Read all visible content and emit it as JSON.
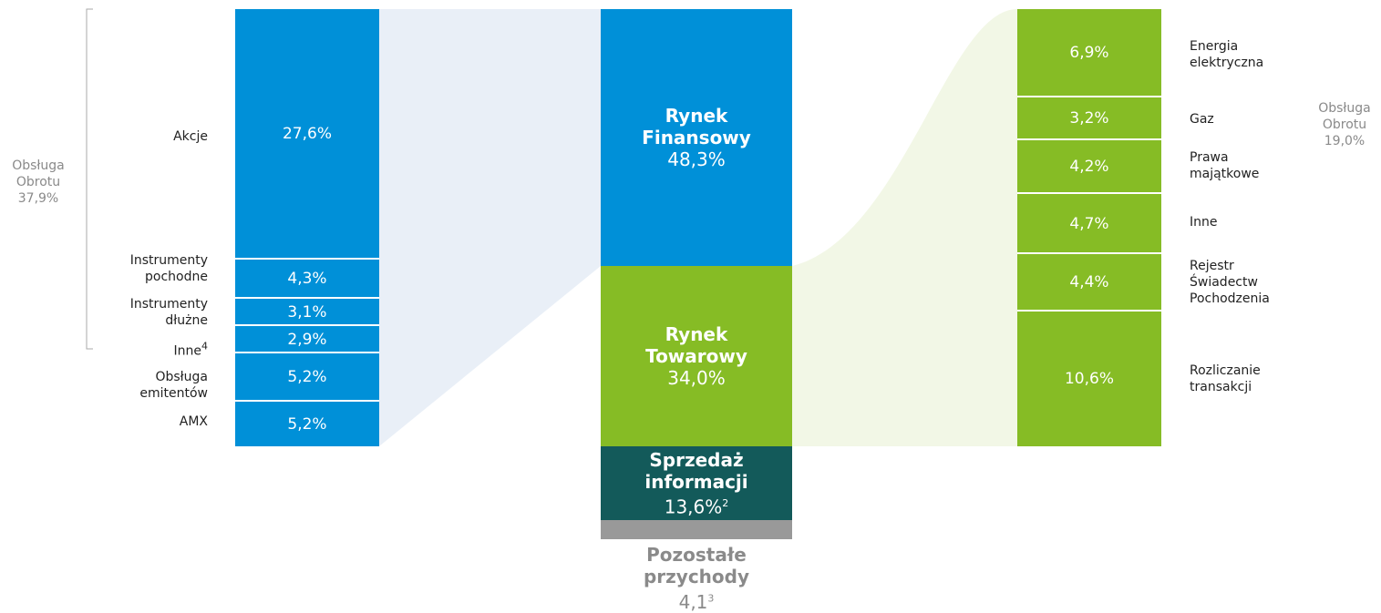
{
  "left_bracket": [
    "Obsługa",
    "Obrotu",
    "37,9%"
  ],
  "left_segments": [
    {
      "label": [
        "Akcje"
      ],
      "value": "27,6%"
    },
    {
      "label": [
        "Instrumenty",
        "pochodne"
      ],
      "value": "4,3%"
    },
    {
      "label": [
        "Instrumenty",
        "dłużne"
      ],
      "value": "3,1%"
    },
    {
      "label": [
        "Inne"
      ],
      "sup": "4",
      "value": "2,9%"
    },
    {
      "label": [
        "Obsługa",
        "emitentów"
      ],
      "value": "5,2%"
    },
    {
      "label": [
        "AMX"
      ],
      "value": "5,2%"
    }
  ],
  "middle": [
    {
      "title": [
        "Rynek",
        "Finansowy"
      ],
      "value": "48,3%"
    },
    {
      "title": [
        "Rynek",
        "Towarowy"
      ],
      "value": "34,0%"
    },
    {
      "title": [
        "Sprzedaż",
        "informacji"
      ],
      "value": "13,6%",
      "sup": "2"
    },
    {
      "title": [
        "Pozostałe",
        "przychody"
      ],
      "value": "4,1",
      "sup": "3"
    }
  ],
  "right_segments": [
    {
      "label": [
        "Energia",
        "elektryczna"
      ],
      "value": "6,9%"
    },
    {
      "label": [
        "Gaz"
      ],
      "value": "3,2%"
    },
    {
      "label": [
        "Prawa",
        "majątkowe"
      ],
      "value": "4,2%"
    },
    {
      "label": [
        "Inne"
      ],
      "value": "4,7%"
    },
    {
      "label": [
        "Rejestr",
        "Świadectw",
        "Pochodzenia"
      ],
      "value": "4,4%"
    },
    {
      "label": [
        "Rozliczanie",
        "transakcji"
      ],
      "value": "10,6%"
    }
  ],
  "right_bracket": [
    "Obsługa",
    "Obrotu",
    "19,0%"
  ]
}
